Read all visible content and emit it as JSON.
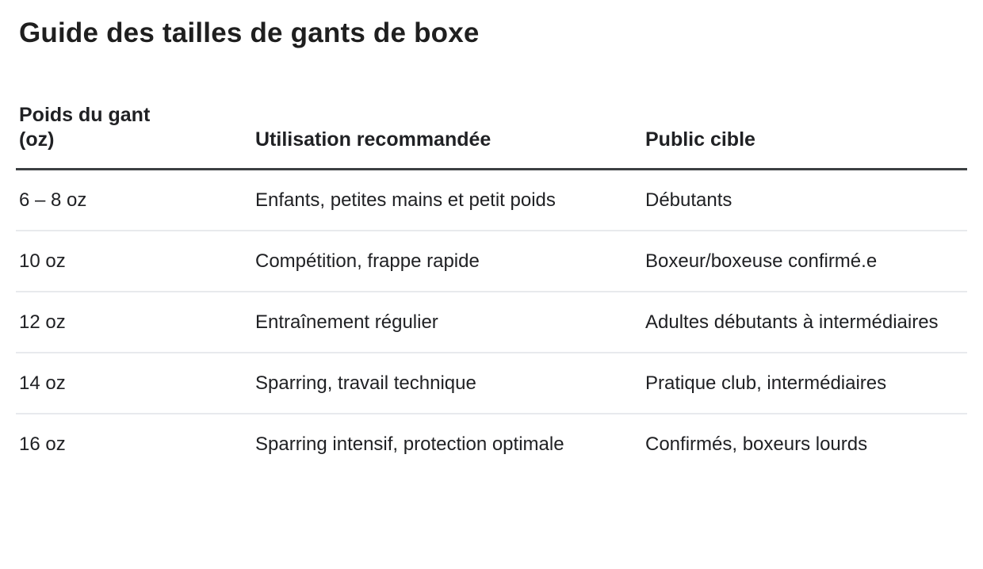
{
  "page": {
    "title": "Guide des tailles de gants de boxe"
  },
  "table": {
    "columns": [
      {
        "label": "Poids du gant (oz)"
      },
      {
        "label": "Utilisation recommandée"
      },
      {
        "label": "Public cible"
      }
    ],
    "rows": [
      {
        "weight": "6 – 8 oz",
        "usage": "Enfants, petites mains et petit poids",
        "audience": "Débutants"
      },
      {
        "weight": "10 oz",
        "usage": "Compétition, frappe rapide",
        "audience": "Boxeur/boxeuse confirmé.e"
      },
      {
        "weight": "12 oz",
        "usage": "Entraînement régulier",
        "audience": "Adultes débutants à intermédiaires"
      },
      {
        "weight": "14 oz",
        "usage": "Sparring, travail technique",
        "audience": "Pratique club, intermédiaires"
      },
      {
        "weight": "16 oz",
        "usage": "Sparring intensif, protection optimale",
        "audience": "Confirmés, boxeurs lourds"
      }
    ]
  },
  "colors": {
    "background": "#ffffff",
    "text": "#202124",
    "header_border": "#3c4043",
    "row_border": "#e8eaed"
  }
}
